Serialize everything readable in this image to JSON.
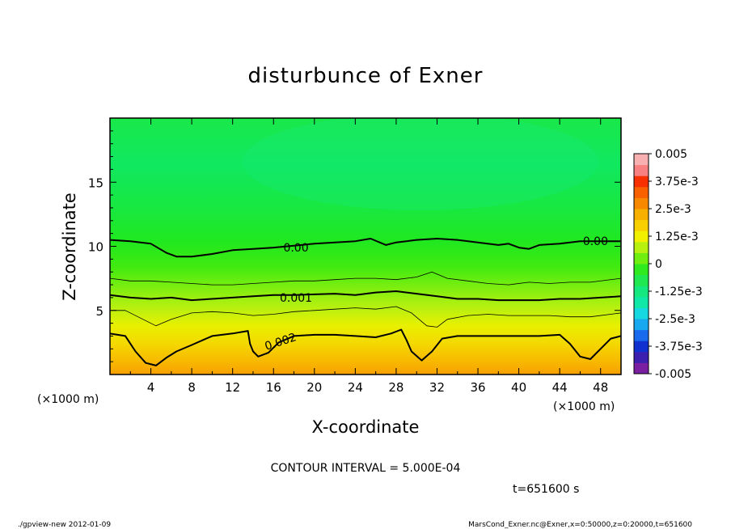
{
  "chart_data": {
    "type": "contour",
    "title": "disturbunce of Exner",
    "xlabel": "X-coordinate",
    "ylabel": "Z-coordinate",
    "x_unit_left": "(×1000 m)",
    "x_unit_right": "(×1000 m)",
    "xlim": [
      0,
      50
    ],
    "ylim": [
      0,
      20
    ],
    "x_ticks": [
      4,
      8,
      12,
      16,
      20,
      24,
      28,
      32,
      36,
      40,
      44,
      48
    ],
    "y_ticks": [
      5,
      10,
      15
    ],
    "contour_interval_text": "CONTOUR INTERVAL = 5.000E-04",
    "time_text": "t=651600 s",
    "colorbar": {
      "range": [
        -0.005,
        0.005
      ],
      "labels": [
        "0.005",
        "3.75e-3",
        "2.5e-3",
        "1.25e-3",
        "0",
        "-1.25e-3",
        "-2.5e-3",
        "-3.75e-3",
        "-0.005"
      ],
      "colors": [
        "#7a1fa2",
        "#3d1fb0",
        "#1030d0",
        "#1a6aee",
        "#18a8f0",
        "#16d8e0",
        "#10e8a8",
        "#16e880",
        "#20e850",
        "#30ea20",
        "#70ee10",
        "#b8f010",
        "#f0f000",
        "#f8d000",
        "#f8b000",
        "#f88800",
        "#f86000",
        "#f83000",
        "#f88080",
        "#f8b0b0"
      ]
    },
    "contour_labels": [
      {
        "text": "0.00",
        "x": 18.2,
        "z": 9.9
      },
      {
        "text": "0.00",
        "x": 47.5,
        "z": 10.4
      },
      {
        "text": "0.001",
        "x": 18.2,
        "z": 6.0
      },
      {
        "text": "0.002",
        "x": 16.8,
        "z": 2.6
      }
    ],
    "contours": [
      {
        "level": 0.0,
        "weight": "major",
        "points": [
          [
            0,
            10.5
          ],
          [
            2,
            10.4
          ],
          [
            4,
            10.2
          ],
          [
            5.5,
            9.5
          ],
          [
            6.5,
            9.2
          ],
          [
            8,
            9.2
          ],
          [
            10,
            9.4
          ],
          [
            12,
            9.7
          ],
          [
            14,
            9.8
          ],
          [
            16,
            9.9
          ],
          [
            20,
            10.2
          ],
          [
            22,
            10.3
          ],
          [
            24,
            10.4
          ],
          [
            25.5,
            10.6
          ],
          [
            27,
            10.1
          ],
          [
            28,
            10.3
          ],
          [
            29,
            10.4
          ],
          [
            30,
            10.5
          ],
          [
            32,
            10.6
          ],
          [
            34,
            10.5
          ],
          [
            36,
            10.3
          ],
          [
            38,
            10.1
          ],
          [
            39,
            10.2
          ],
          [
            40,
            9.9
          ],
          [
            41,
            9.8
          ],
          [
            42,
            10.1
          ],
          [
            44,
            10.2
          ],
          [
            46,
            10.4
          ],
          [
            48,
            10.4
          ],
          [
            50,
            10.4
          ]
        ]
      },
      {
        "level": 0.0005,
        "weight": "minor",
        "points": [
          [
            0,
            7.5
          ],
          [
            2,
            7.3
          ],
          [
            4,
            7.3
          ],
          [
            6,
            7.2
          ],
          [
            8,
            7.1
          ],
          [
            10,
            7.0
          ],
          [
            12,
            7.0
          ],
          [
            14,
            7.1
          ],
          [
            16,
            7.2
          ],
          [
            18,
            7.3
          ],
          [
            20,
            7.3
          ],
          [
            22,
            7.4
          ],
          [
            24,
            7.5
          ],
          [
            26,
            7.5
          ],
          [
            28,
            7.4
          ],
          [
            30,
            7.6
          ],
          [
            31.5,
            8.0
          ],
          [
            33,
            7.5
          ],
          [
            35,
            7.3
          ],
          [
            37,
            7.1
          ],
          [
            39,
            7.0
          ],
          [
            41,
            7.2
          ],
          [
            43,
            7.1
          ],
          [
            45,
            7.2
          ],
          [
            47,
            7.2
          ],
          [
            50,
            7.5
          ]
        ]
      },
      {
        "level": 0.001,
        "weight": "major",
        "points": [
          [
            0,
            6.2
          ],
          [
            2,
            6.0
          ],
          [
            4,
            5.9
          ],
          [
            6,
            6.0
          ],
          [
            8,
            5.8
          ],
          [
            10,
            5.9
          ],
          [
            12,
            6.0
          ],
          [
            14,
            6.1
          ],
          [
            16,
            6.2
          ],
          [
            18,
            6.2
          ],
          [
            22,
            6.3
          ],
          [
            24,
            6.2
          ],
          [
            26,
            6.4
          ],
          [
            28,
            6.5
          ],
          [
            30,
            6.3
          ],
          [
            32,
            6.1
          ],
          [
            34,
            5.9
          ],
          [
            36,
            5.9
          ],
          [
            38,
            5.8
          ],
          [
            40,
            5.8
          ],
          [
            42,
            5.8
          ],
          [
            44,
            5.9
          ],
          [
            46,
            5.9
          ],
          [
            48,
            6.0
          ],
          [
            50,
            6.1
          ]
        ]
      },
      {
        "level": 0.0015,
        "weight": "minor",
        "points": [
          [
            0,
            5.0
          ],
          [
            1.5,
            5.0
          ],
          [
            3,
            4.4
          ],
          [
            4.5,
            3.8
          ],
          [
            6,
            4.3
          ],
          [
            8,
            4.8
          ],
          [
            10,
            4.9
          ],
          [
            12,
            4.8
          ],
          [
            14,
            4.6
          ],
          [
            16,
            4.7
          ],
          [
            18,
            4.9
          ],
          [
            20,
            5.0
          ],
          [
            22,
            5.1
          ],
          [
            24,
            5.2
          ],
          [
            26,
            5.1
          ],
          [
            28,
            5.3
          ],
          [
            29.5,
            4.8
          ],
          [
            31,
            3.8
          ],
          [
            32,
            3.7
          ],
          [
            33,
            4.3
          ],
          [
            35,
            4.6
          ],
          [
            37,
            4.7
          ],
          [
            39,
            4.6
          ],
          [
            41,
            4.6
          ],
          [
            43,
            4.6
          ],
          [
            45,
            4.5
          ],
          [
            47,
            4.5
          ],
          [
            50,
            4.8
          ]
        ]
      },
      {
        "level": 0.002,
        "weight": "major",
        "points": [
          [
            0,
            3.2
          ],
          [
            1.5,
            3.0
          ],
          [
            2.5,
            1.8
          ],
          [
            3.5,
            0.9
          ],
          [
            4.5,
            0.7
          ],
          [
            5.5,
            1.3
          ],
          [
            6.5,
            1.8
          ],
          [
            8,
            2.3
          ],
          [
            10,
            3.0
          ],
          [
            12,
            3.2
          ],
          [
            13.5,
            3.4
          ],
          [
            13.7,
            2.4
          ],
          [
            14,
            1.8
          ],
          [
            14.5,
            1.4
          ],
          [
            15.5,
            1.7
          ],
          [
            16.5,
            2.5
          ],
          [
            18,
            3.0
          ],
          [
            20,
            3.1
          ],
          [
            22,
            3.1
          ],
          [
            24,
            3.0
          ],
          [
            26,
            2.9
          ],
          [
            27.5,
            3.2
          ],
          [
            28.5,
            3.5
          ],
          [
            29,
            2.7
          ],
          [
            29.5,
            1.8
          ],
          [
            30.5,
            1.1
          ],
          [
            31.5,
            1.8
          ],
          [
            32.5,
            2.8
          ],
          [
            34,
            3.0
          ],
          [
            36,
            3.0
          ],
          [
            38,
            3.0
          ],
          [
            40,
            3.0
          ],
          [
            42,
            3.0
          ],
          [
            44,
            3.1
          ],
          [
            45,
            2.4
          ],
          [
            46,
            1.4
          ],
          [
            47,
            1.2
          ],
          [
            48,
            2.0
          ],
          [
            49,
            2.8
          ],
          [
            50,
            3.0
          ]
        ]
      }
    ]
  },
  "footer": {
    "left": "./gpview-new   2012-01-09",
    "right": "MarsCond_Exner.nc@Exner,x=0:50000,z=0:20000,t=651600"
  }
}
